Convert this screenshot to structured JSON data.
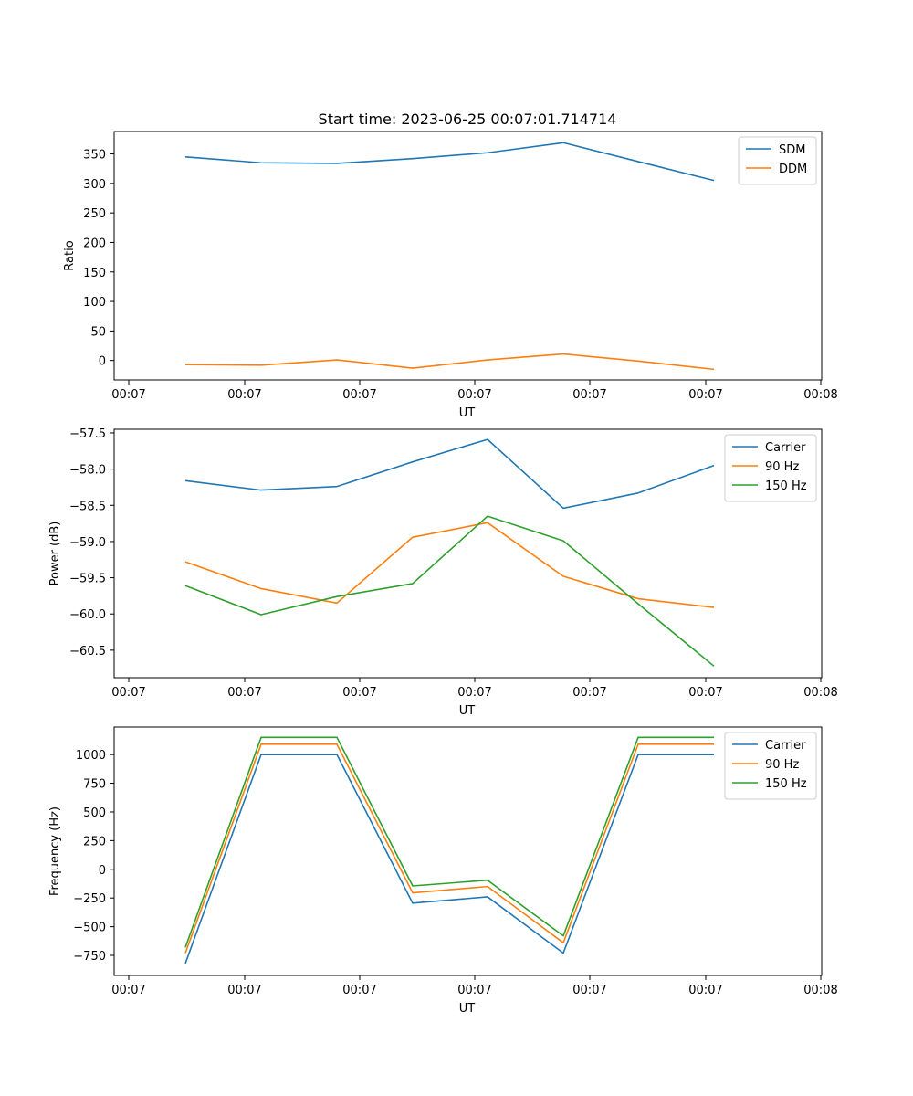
{
  "title": "Start time: 2023-06-25 00:07:01.714714",
  "chart_data": [
    {
      "type": "line",
      "title": "Start time: 2023-06-25 00:07:01.714714",
      "xlabel": "UT",
      "ylabel": "Ratio",
      "x_tick_labels": [
        "00:07",
        "00:07",
        "00:07",
        "00:07",
        "00:07",
        "00:07",
        "00:08"
      ],
      "y_ticks": [
        0,
        50,
        100,
        150,
        200,
        250,
        300,
        350
      ],
      "ylim": [
        -33,
        388
      ],
      "x_tick_count": 7,
      "legend_position": "upper right",
      "grid": false,
      "series": [
        {
          "name": "SDM",
          "color": "#1f77b4",
          "values": [
            345,
            335,
            334,
            342,
            352,
            369,
            337,
            305
          ]
        },
        {
          "name": "DDM",
          "color": "#ff7f0e",
          "values": [
            -7,
            -8,
            1,
            -13,
            1,
            11,
            -1,
            -15
          ]
        }
      ]
    },
    {
      "type": "line",
      "xlabel": "UT",
      "ylabel": "Power (dB)",
      "x_tick_labels": [
        "00:07",
        "00:07",
        "00:07",
        "00:07",
        "00:07",
        "00:07",
        "00:08"
      ],
      "y_ticks": [
        -60.5,
        -60.0,
        -59.5,
        -59.0,
        -58.5,
        -58.0,
        -57.5
      ],
      "y_tick_labels": [
        "−60.5",
        "−60.0",
        "−59.5",
        "−59.0",
        "−58.5",
        "−58.0",
        "−57.5"
      ],
      "ylim": [
        -60.88,
        -57.45
      ],
      "x_tick_count": 7,
      "legend_position": "upper right",
      "grid": false,
      "series": [
        {
          "name": "Carrier",
          "color": "#1f77b4",
          "values": [
            -58.16,
            -58.29,
            -58.24,
            -57.9,
            -57.59,
            -58.54,
            -58.33,
            -57.95
          ]
        },
        {
          "name": "90 Hz",
          "color": "#ff7f0e",
          "values": [
            -59.28,
            -59.65,
            -59.85,
            -58.94,
            -58.74,
            -59.48,
            -59.79,
            -59.91
          ]
        },
        {
          "name": "150 Hz",
          "color": "#2ca02c",
          "values": [
            -59.61,
            -60.01,
            -59.76,
            -59.58,
            -58.65,
            -58.99,
            -59.86,
            -60.72
          ]
        }
      ]
    },
    {
      "type": "line",
      "xlabel": "UT",
      "ylabel": "Frequency (Hz)",
      "x_tick_labels": [
        "00:07",
        "00:07",
        "00:07",
        "00:07",
        "00:07",
        "00:07",
        "00:08"
      ],
      "y_ticks": [
        -750,
        -500,
        -250,
        0,
        250,
        500,
        750,
        1000
      ],
      "y_tick_labels": [
        "−750",
        "−500",
        "−250",
        "0",
        "250",
        "500",
        "750",
        "1000"
      ],
      "ylim": [
        -925,
        1240
      ],
      "x_tick_count": 7,
      "legend_position": "upper right",
      "grid": false,
      "series": [
        {
          "name": "Carrier",
          "color": "#1f77b4",
          "values": [
            -820,
            1000,
            1000,
            -295,
            -240,
            -730,
            1000,
            1000
          ]
        },
        {
          "name": "90 Hz",
          "color": "#ff7f0e",
          "values": [
            -730,
            1090,
            1090,
            -205,
            -150,
            -640,
            1090,
            1090
          ]
        },
        {
          "name": "150 Hz",
          "color": "#2ca02c",
          "values": [
            -680,
            1150,
            1150,
            -145,
            -95,
            -580,
            1150,
            1150
          ]
        }
      ]
    }
  ]
}
